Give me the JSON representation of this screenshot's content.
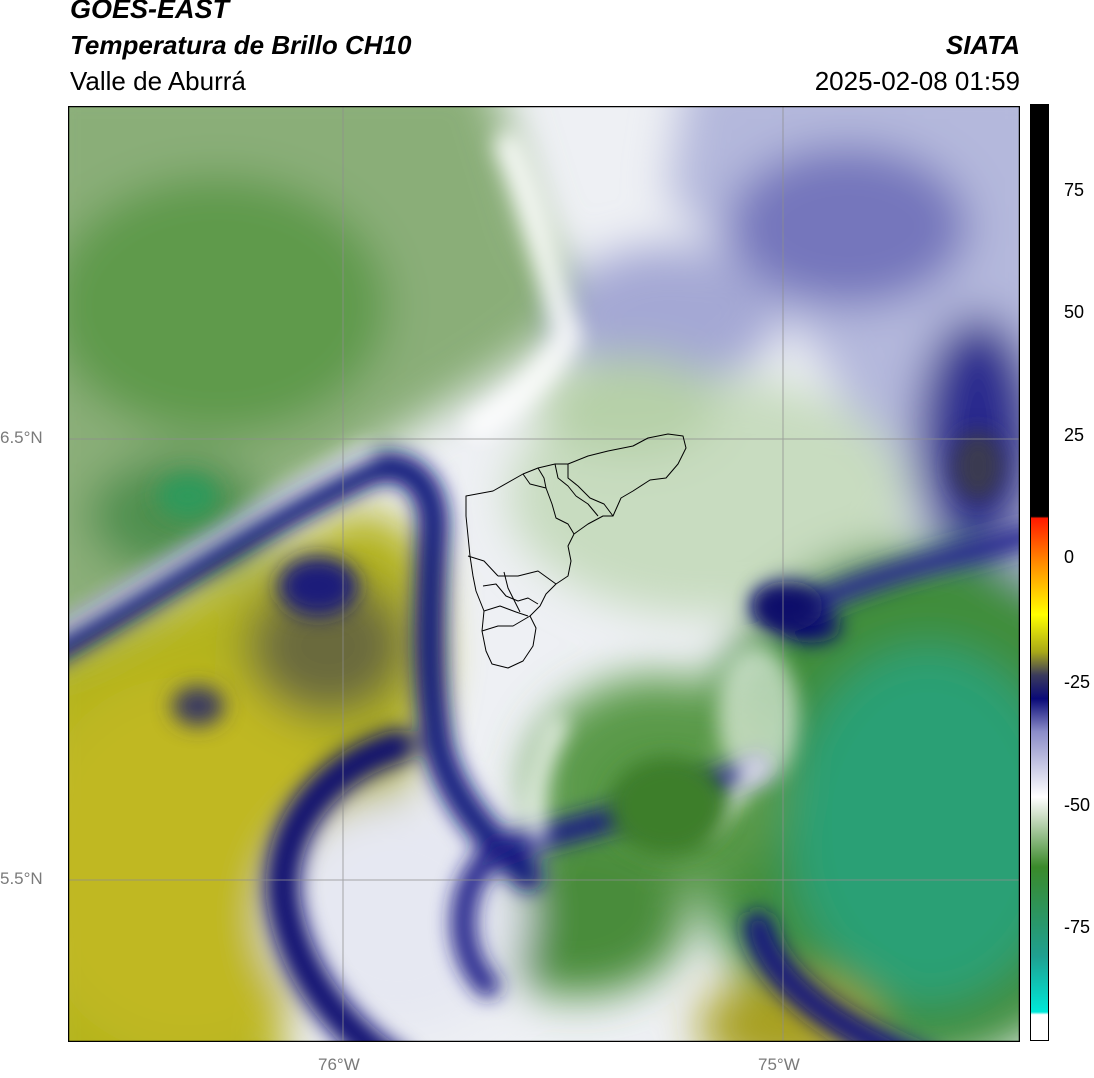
{
  "header": {
    "satellite": "GOES-EAST",
    "product": "Temperatura de Brillo CH10",
    "region": "Valle de Aburrá",
    "agency": "SIATA",
    "timestamp": "2025-02-08 01:59"
  },
  "axes": {
    "lat_ticks": [
      {
        "label": "6.5°N",
        "lat": 6.5
      },
      {
        "label": "5.5°N",
        "lat": 5.5
      }
    ],
    "lon_ticks": [
      {
        "label": "76°W",
        "lon": -76.0
      },
      {
        "label": "75°W",
        "lon": -75.0
      }
    ],
    "grid": true
  },
  "colorbar": {
    "ticks": [
      "75",
      "50",
      "25",
      "0",
      "-25",
      "-50",
      "-75"
    ],
    "tick_values": [
      75,
      50,
      25,
      0,
      -25,
      -50,
      -75
    ],
    "range": [
      -95,
      92
    ],
    "colors": {
      "black": "#000000",
      "red": "#ff1a00",
      "orange": "#ff8c00",
      "yellow": "#ffff00",
      "olive": "#a8a818",
      "navy": "#0a0a78",
      "white": "#ffffff",
      "green": "#3a8a2a",
      "teal": "#1fa090",
      "cyan": "#00e8d8"
    }
  }
}
